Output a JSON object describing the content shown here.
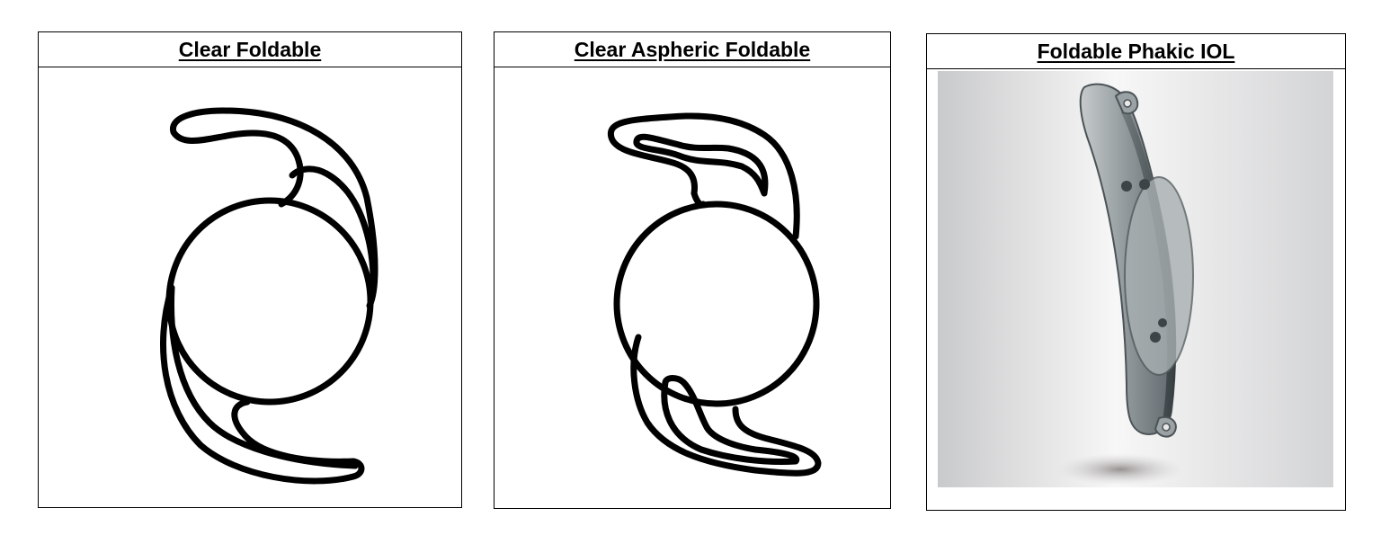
{
  "panels": [
    {
      "title": "Clear Foldable",
      "icon": "iol-open-loop-haptic-icon"
    },
    {
      "title": "Clear Aspheric Foldable",
      "icon": "iol-aspheric-haptic-icon"
    },
    {
      "title": "Foldable Phakic IOL",
      "icon": "phakic-iol-render-icon"
    }
  ],
  "colors": {
    "outline": "#000000",
    "background": "#ffffff",
    "lens_gray": "#8a9093"
  }
}
